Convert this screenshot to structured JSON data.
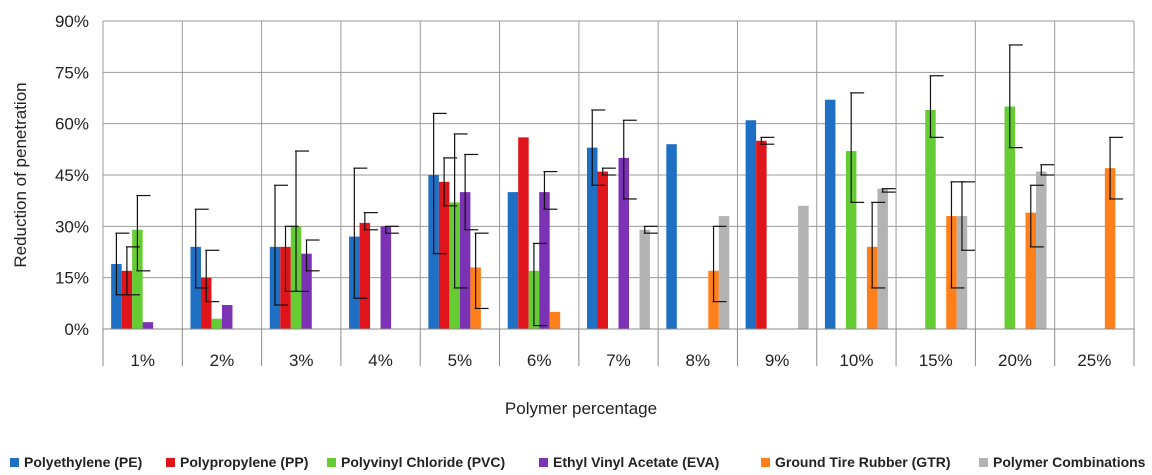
{
  "chart_data": {
    "type": "bar",
    "xlabel": "Polymer percentage",
    "ylabel": "Reduction of penetration",
    "ylim": [
      0,
      90
    ],
    "y_unit": "%",
    "yticks": [
      0,
      15,
      30,
      45,
      60,
      75,
      90
    ],
    "ytick_labels": [
      "0%",
      "15%",
      "30%",
      "45%",
      "60%",
      "75%",
      "90%"
    ],
    "categories": [
      "1%",
      "2%",
      "3%",
      "4%",
      "5%",
      "6%",
      "7%",
      "8%",
      "9%",
      "10%",
      "15%",
      "20%",
      "25%"
    ],
    "grid": true,
    "legend_position": "bottom",
    "series": [
      {
        "name": "Polyethylene (PE)",
        "color": "#1f6fc5",
        "values": [
          19,
          24,
          24,
          27,
          45,
          40,
          53,
          54,
          61,
          67,
          null,
          null,
          null
        ],
        "err_low": [
          10,
          12,
          7,
          9,
          22,
          null,
          42,
          null,
          null,
          null,
          null,
          null,
          null
        ],
        "err_high": [
          28,
          35,
          42,
          47,
          63,
          null,
          64,
          null,
          null,
          null,
          null,
          null,
          null
        ]
      },
      {
        "name": "Polypropylene (PP)",
        "color": "#e0151b",
        "values": [
          17,
          15,
          24,
          31,
          43,
          56,
          46,
          null,
          55,
          null,
          null,
          null,
          null
        ],
        "err_low": [
          10,
          8,
          11,
          29,
          36,
          null,
          45,
          null,
          54,
          null,
          null,
          null,
          null
        ],
        "err_high": [
          24,
          23,
          30,
          34,
          50,
          null,
          47,
          null,
          56,
          null,
          null,
          null,
          null
        ]
      },
      {
        "name": "Polyvinyl Chloride (PVC)",
        "color": "#66cc33",
        "values": [
          29,
          3,
          30,
          null,
          37,
          17,
          null,
          null,
          null,
          52,
          64,
          65,
          null
        ],
        "err_low": [
          17,
          null,
          11,
          null,
          12,
          1,
          null,
          null,
          null,
          37,
          56,
          53,
          null
        ],
        "err_high": [
          39,
          null,
          52,
          null,
          57,
          25,
          null,
          null,
          null,
          69,
          74,
          83,
          null
        ]
      },
      {
        "name": "Ethyl Vinyl Acetate (EVA)",
        "color": "#7b32b4",
        "values": [
          2,
          7,
          22,
          30,
          40,
          40,
          50,
          null,
          null,
          null,
          null,
          null,
          null
        ],
        "err_low": [
          null,
          null,
          17,
          28,
          29,
          35,
          38,
          null,
          null,
          null,
          null,
          null,
          null
        ],
        "err_high": [
          null,
          null,
          26,
          30,
          51,
          46,
          61,
          null,
          null,
          null,
          null,
          null,
          null
        ]
      },
      {
        "name": "Ground Tire Rubber (GTR)",
        "color": "#ff7f1a",
        "values": [
          null,
          null,
          null,
          null,
          18,
          5,
          null,
          17,
          null,
          24,
          33,
          34,
          47
        ],
        "err_low": [
          null,
          null,
          null,
          null,
          6,
          null,
          null,
          8,
          null,
          12,
          12,
          24,
          38
        ],
        "err_high": [
          null,
          null,
          null,
          null,
          28,
          null,
          null,
          30,
          null,
          37,
          43,
          42,
          56
        ]
      },
      {
        "name": "Polymer Combinations",
        "color": "#b3b3b3",
        "values": [
          null,
          null,
          null,
          null,
          null,
          null,
          29,
          33,
          36,
          41,
          33,
          46,
          null
        ],
        "err_low": [
          null,
          null,
          null,
          null,
          null,
          null,
          28,
          null,
          null,
          40,
          23,
          45,
          null
        ],
        "err_high": [
          null,
          null,
          null,
          null,
          null,
          null,
          30,
          null,
          null,
          41,
          43,
          48,
          null
        ]
      }
    ]
  }
}
